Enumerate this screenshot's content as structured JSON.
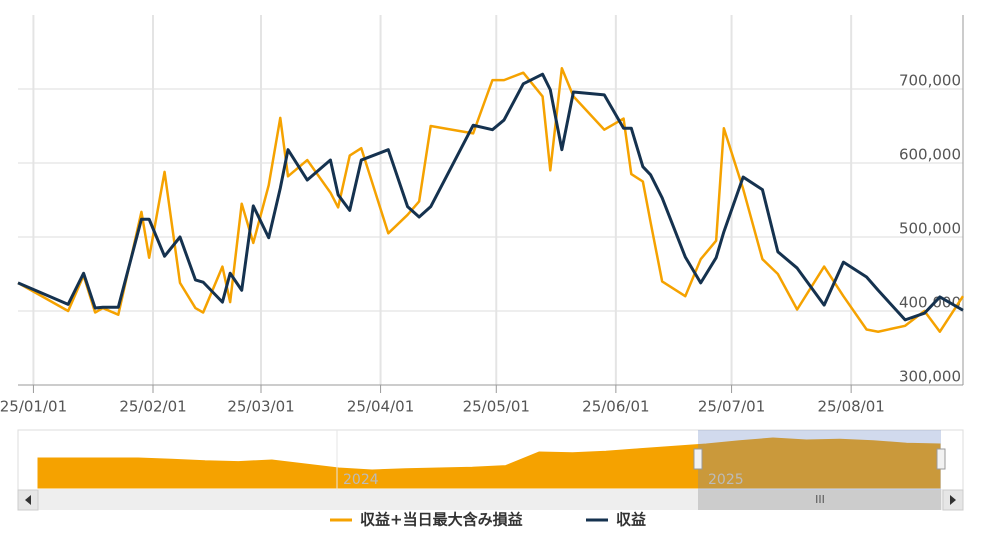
{
  "chart_data": {
    "type": "line",
    "x": [
      "24/12/28",
      "25/01/10",
      "25/01/14",
      "25/01/17",
      "25/01/19",
      "25/01/23",
      "25/01/29",
      "25/01/31",
      "25/02/04",
      "25/02/08",
      "25/02/12",
      "25/02/14",
      "25/02/19",
      "25/02/21",
      "25/02/24",
      "25/02/27",
      "25/03/03",
      "25/03/06",
      "25/03/08",
      "25/03/13",
      "25/03/19",
      "25/03/21",
      "25/03/24",
      "25/03/27",
      "25/04/03",
      "25/04/08",
      "25/04/11",
      "25/04/14",
      "25/04/25",
      "25/04/30",
      "25/05/03",
      "25/05/08",
      "25/05/13",
      "25/05/15",
      "25/05/18",
      "25/05/21",
      "25/05/29",
      "25/06/03",
      "25/06/05",
      "25/06/08",
      "25/06/10",
      "25/06/13",
      "25/06/19",
      "25/06/23",
      "25/06/27",
      "25/06/29",
      "25/07/04",
      "25/07/09",
      "25/07/13",
      "25/07/18",
      "25/07/25",
      "25/07/30",
      "25/08/05",
      "25/08/08",
      "25/08/15",
      "25/08/20",
      "25/08/24",
      "25/08/30"
    ],
    "series": [
      {
        "name": "収益+当日最大含み損益",
        "color": "#f5a200",
        "values": [
          438000,
          400000,
          448000,
          398000,
          404000,
          395000,
          534000,
          472000,
          588000,
          438000,
          404000,
          398000,
          460000,
          412000,
          545000,
          492000,
          570000,
          661000,
          582000,
          604000,
          560000,
          540000,
          610000,
          620000,
          505000,
          530000,
          548000,
          650000,
          640000,
          712000,
          712000,
          722000,
          690000,
          590000,
          728000,
          690000,
          645000,
          660000,
          585000,
          575000,
          520000,
          440000,
          420000,
          470000,
          495000,
          647000,
          565000,
          470000,
          450000,
          402000,
          460000,
          420000,
          375000,
          372000,
          380000,
          400000,
          372000,
          420000
        ]
      },
      {
        "name": "収益",
        "color": "#15324f",
        "values": [
          438000,
          409000,
          451000,
          404000,
          405000,
          405000,
          524000,
          524000,
          474000,
          500000,
          442000,
          439000,
          412000,
          451000,
          428000,
          542000,
          499000,
          566000,
          618000,
          577000,
          604000,
          557000,
          536000,
          604000,
          618000,
          541000,
          527000,
          541000,
          651000,
          645000,
          658000,
          707000,
          720000,
          699000,
          618000,
          696000,
          692000,
          647000,
          647000,
          595000,
          584000,
          553000,
          473000,
          438000,
          472000,
          507000,
          581000,
          564000,
          480000,
          458000,
          408000,
          466000,
          446000,
          428000,
          388000,
          397000,
          419000,
          401000
        ]
      }
    ],
    "xlim": [
      "24/12/28",
      "25/08/30"
    ],
    "xticks": [
      "25/01/01",
      "25/02/01",
      "25/03/01",
      "25/04/01",
      "25/05/01",
      "25/06/01",
      "25/07/01",
      "25/08/01"
    ],
    "ylim": [
      300000,
      800000
    ],
    "yticks": [
      {
        "value": 300000,
        "label": "300,000"
      },
      {
        "value": 400000,
        "label": "400,000"
      },
      {
        "value": 500000,
        "label": "500,000"
      },
      {
        "value": 600000,
        "label": "600,000"
      },
      {
        "value": 700000,
        "label": "700,000"
      }
    ],
    "grid": true,
    "navigator": {
      "labels": [
        "2024",
        "2025"
      ],
      "color": "#f5a200",
      "values": [
        455000,
        455000,
        455000,
        455000,
        452000,
        448000,
        446000,
        450000,
        440000,
        430000,
        425000,
        428000,
        430000,
        432000,
        436000,
        470000,
        468000,
        472000,
        478000,
        484000,
        490000,
        498000,
        505000,
        500000,
        502000,
        498000,
        492000,
        490000
      ],
      "ylim": [
        380000,
        520000
      ]
    }
  }
}
